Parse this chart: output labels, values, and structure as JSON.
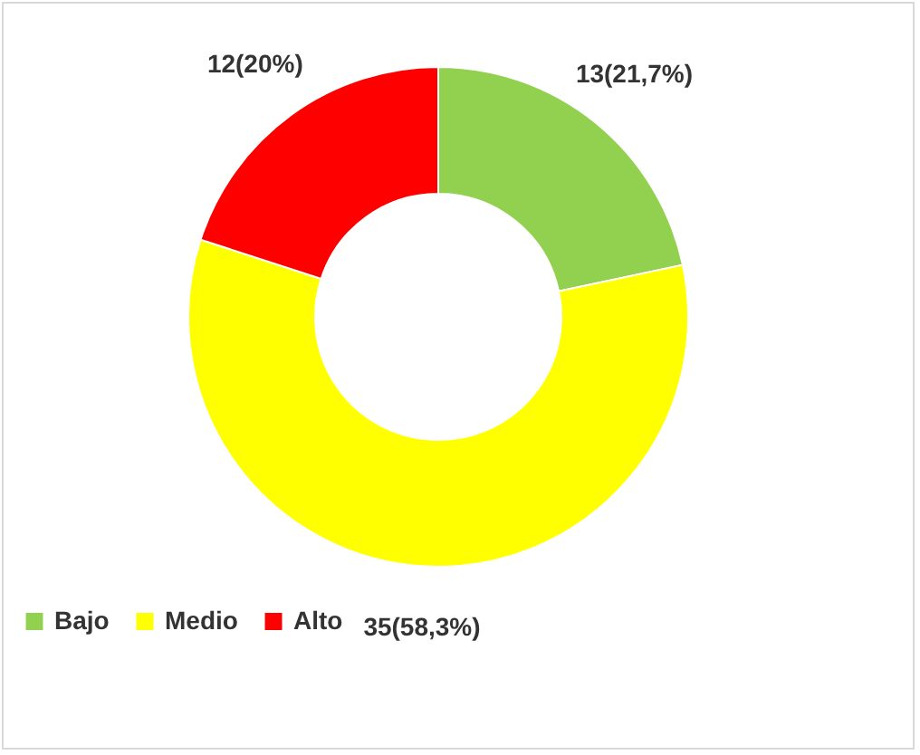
{
  "chart_data": {
    "type": "donut",
    "categories": [
      "Bajo",
      "Medio",
      "Alto"
    ],
    "values": [
      13,
      35,
      12
    ],
    "colors": [
      "#92d050",
      "#ffff00",
      "#ff0000"
    ],
    "value_labels": [
      "13(21,7%)",
      "35(58,3%)",
      "12(20%)"
    ],
    "legend": "bottom"
  }
}
